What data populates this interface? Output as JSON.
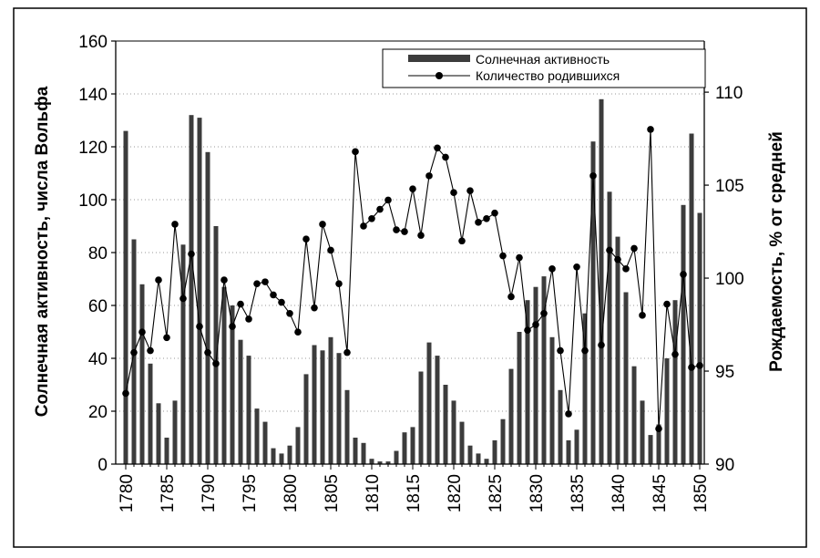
{
  "chart_data": {
    "type": "bar+line",
    "title": "",
    "xlabel": "",
    "ylabel": "Солнечная активность, числа Вольфа",
    "y2label": "Рождаемость, % от средней",
    "ylim": [
      0,
      160
    ],
    "yticks": [
      0,
      20,
      40,
      60,
      80,
      100,
      120,
      140,
      160
    ],
    "y2lim": [
      90,
      112.75
    ],
    "y2ticks": [
      90,
      95,
      100,
      105,
      110
    ],
    "xlim": [
      1780,
      1850
    ],
    "xticks": [
      1780,
      1785,
      1790,
      1795,
      1800,
      1805,
      1810,
      1815,
      1820,
      1825,
      1830,
      1835,
      1840,
      1845,
      1850
    ],
    "legend_position": "top-right",
    "series": [
      {
        "name": "Солнечная активность",
        "kind": "bar",
        "axis": "left",
        "color": "#3c3c3c",
        "x": [
          1780,
          1781,
          1782,
          1783,
          1784,
          1785,
          1786,
          1787,
          1788,
          1789,
          1790,
          1791,
          1792,
          1793,
          1794,
          1795,
          1796,
          1797,
          1798,
          1799,
          1800,
          1801,
          1802,
          1803,
          1804,
          1805,
          1806,
          1807,
          1808,
          1809,
          1810,
          1811,
          1812,
          1813,
          1814,
          1815,
          1816,
          1817,
          1818,
          1819,
          1820,
          1821,
          1822,
          1823,
          1824,
          1825,
          1826,
          1827,
          1828,
          1829,
          1830,
          1831,
          1832,
          1833,
          1834,
          1835,
          1836,
          1837,
          1838,
          1839,
          1840,
          1841,
          1842,
          1843,
          1844,
          1845,
          1846,
          1847,
          1848,
          1849,
          1850
        ],
        "values": [
          126,
          85,
          68,
          38,
          23,
          10,
          24,
          83,
          132,
          131,
          118,
          90,
          67,
          60,
          47,
          41,
          21,
          16,
          6,
          4,
          7,
          14,
          34,
          45,
          43,
          48,
          42,
          28,
          10,
          8,
          2,
          1,
          1,
          5,
          12,
          14,
          35,
          46,
          41,
          30,
          24,
          16,
          7,
          4,
          2,
          9,
          17,
          36,
          50,
          62,
          67,
          71,
          48,
          28,
          9,
          13,
          57,
          122,
          138,
          103,
          86,
          65,
          37,
          24,
          11,
          15,
          40,
          62,
          98,
          125,
          95
        ]
      },
      {
        "name": "Количество родившихся",
        "kind": "line",
        "axis": "right",
        "color": "#000000",
        "x": [
          1780,
          1781,
          1782,
          1783,
          1784,
          1785,
          1786,
          1787,
          1788,
          1789,
          1790,
          1791,
          1792,
          1793,
          1794,
          1795,
          1796,
          1797,
          1798,
          1799,
          1800,
          1801,
          1802,
          1803,
          1804,
          1805,
          1806,
          1807,
          1808,
          1809,
          1810,
          1811,
          1812,
          1813,
          1814,
          1815,
          1816,
          1817,
          1818,
          1819,
          1820,
          1821,
          1822,
          1823,
          1824,
          1825,
          1826,
          1827,
          1828,
          1829,
          1830,
          1831,
          1832,
          1833,
          1834,
          1835,
          1836,
          1837,
          1838,
          1839,
          1840,
          1841,
          1842,
          1843,
          1844,
          1845,
          1846,
          1847,
          1848,
          1849,
          1850
        ],
        "values": [
          93.8,
          96,
          97.1,
          96.1,
          99.9,
          96.8,
          102.9,
          98.9,
          101.3,
          97.4,
          96,
          95.4,
          99.9,
          97.4,
          98.6,
          97.8,
          99.7,
          99.8,
          99.1,
          98.7,
          98.1,
          97.1,
          102.1,
          98.4,
          102.9,
          101.5,
          99.7,
          96,
          106.8,
          102.8,
          103.2,
          103.7,
          104.2,
          102.6,
          102.5,
          104.8,
          102.3,
          105.5,
          107,
          106.5,
          104.6,
          102,
          104.7,
          103,
          103.2,
          103.5,
          101.2,
          99,
          101.1,
          97.2,
          97.5,
          98.1,
          100.5,
          96.1,
          92.7,
          100.6,
          96.1,
          105.5,
          96.4,
          101.5,
          101,
          100.5,
          101.6,
          98,
          108,
          91.9,
          98.6,
          95.9,
          100.2,
          95.2,
          95.3
        ]
      }
    ]
  }
}
